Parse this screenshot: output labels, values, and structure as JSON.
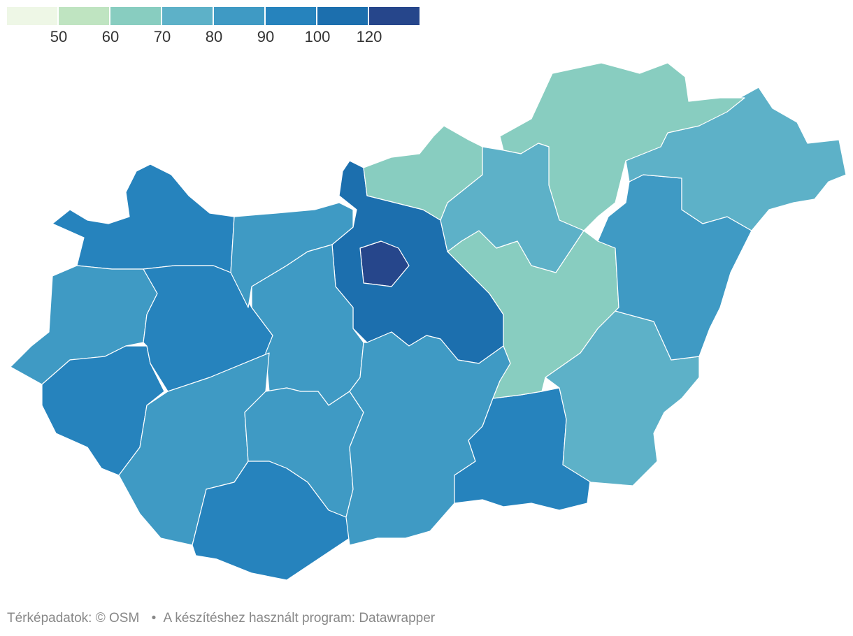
{
  "legend": {
    "colors": [
      "#eef7e6",
      "#bfe4c1",
      "#88cdc0",
      "#5db1c8",
      "#3f9ac4",
      "#2683bd",
      "#1c6fae",
      "#26468b"
    ],
    "ticks": [
      "50",
      "60",
      "70",
      "80",
      "90",
      "100",
      "120"
    ]
  },
  "map": {
    "regions": [
      {
        "name": "Budapest",
        "color": "#26468b"
      },
      {
        "name": "Pest",
        "color": "#1c6fae"
      },
      {
        "name": "Győr-Moson-Sopron",
        "color": "#2683bd"
      },
      {
        "name": "Vas",
        "color": "#3f9ac4"
      },
      {
        "name": "Zala",
        "color": "#2683bd"
      },
      {
        "name": "Veszprém",
        "color": "#2683bd"
      },
      {
        "name": "Komárom-Esztergom",
        "color": "#3f9ac4"
      },
      {
        "name": "Fejér",
        "color": "#3f9ac4"
      },
      {
        "name": "Somogy",
        "color": "#3f9ac4"
      },
      {
        "name": "Tolna",
        "color": "#3f9ac4"
      },
      {
        "name": "Baranya",
        "color": "#2683bd"
      },
      {
        "name": "Bács-Kiskun",
        "color": "#3f9ac4"
      },
      {
        "name": "Csongrád",
        "color": "#2683bd"
      },
      {
        "name": "Békés",
        "color": "#5db1c8"
      },
      {
        "name": "Jász-Nagykun-Szolnok",
        "color": "#88cdc0"
      },
      {
        "name": "Hajdú-Bihar",
        "color": "#3f9ac4"
      },
      {
        "name": "Szabolcs-Szatmár-Bereg",
        "color": "#5db1c8"
      },
      {
        "name": "Borsod-Abaúj-Zemplén",
        "color": "#88cdc0"
      },
      {
        "name": "Heves",
        "color": "#5db1c8"
      },
      {
        "name": "Nógrád",
        "color": "#88cdc0"
      }
    ]
  },
  "footer": {
    "source": "Térképadatok: © OSM",
    "separator": "•",
    "tool": "A készítéshez használt program: Datawrapper"
  }
}
